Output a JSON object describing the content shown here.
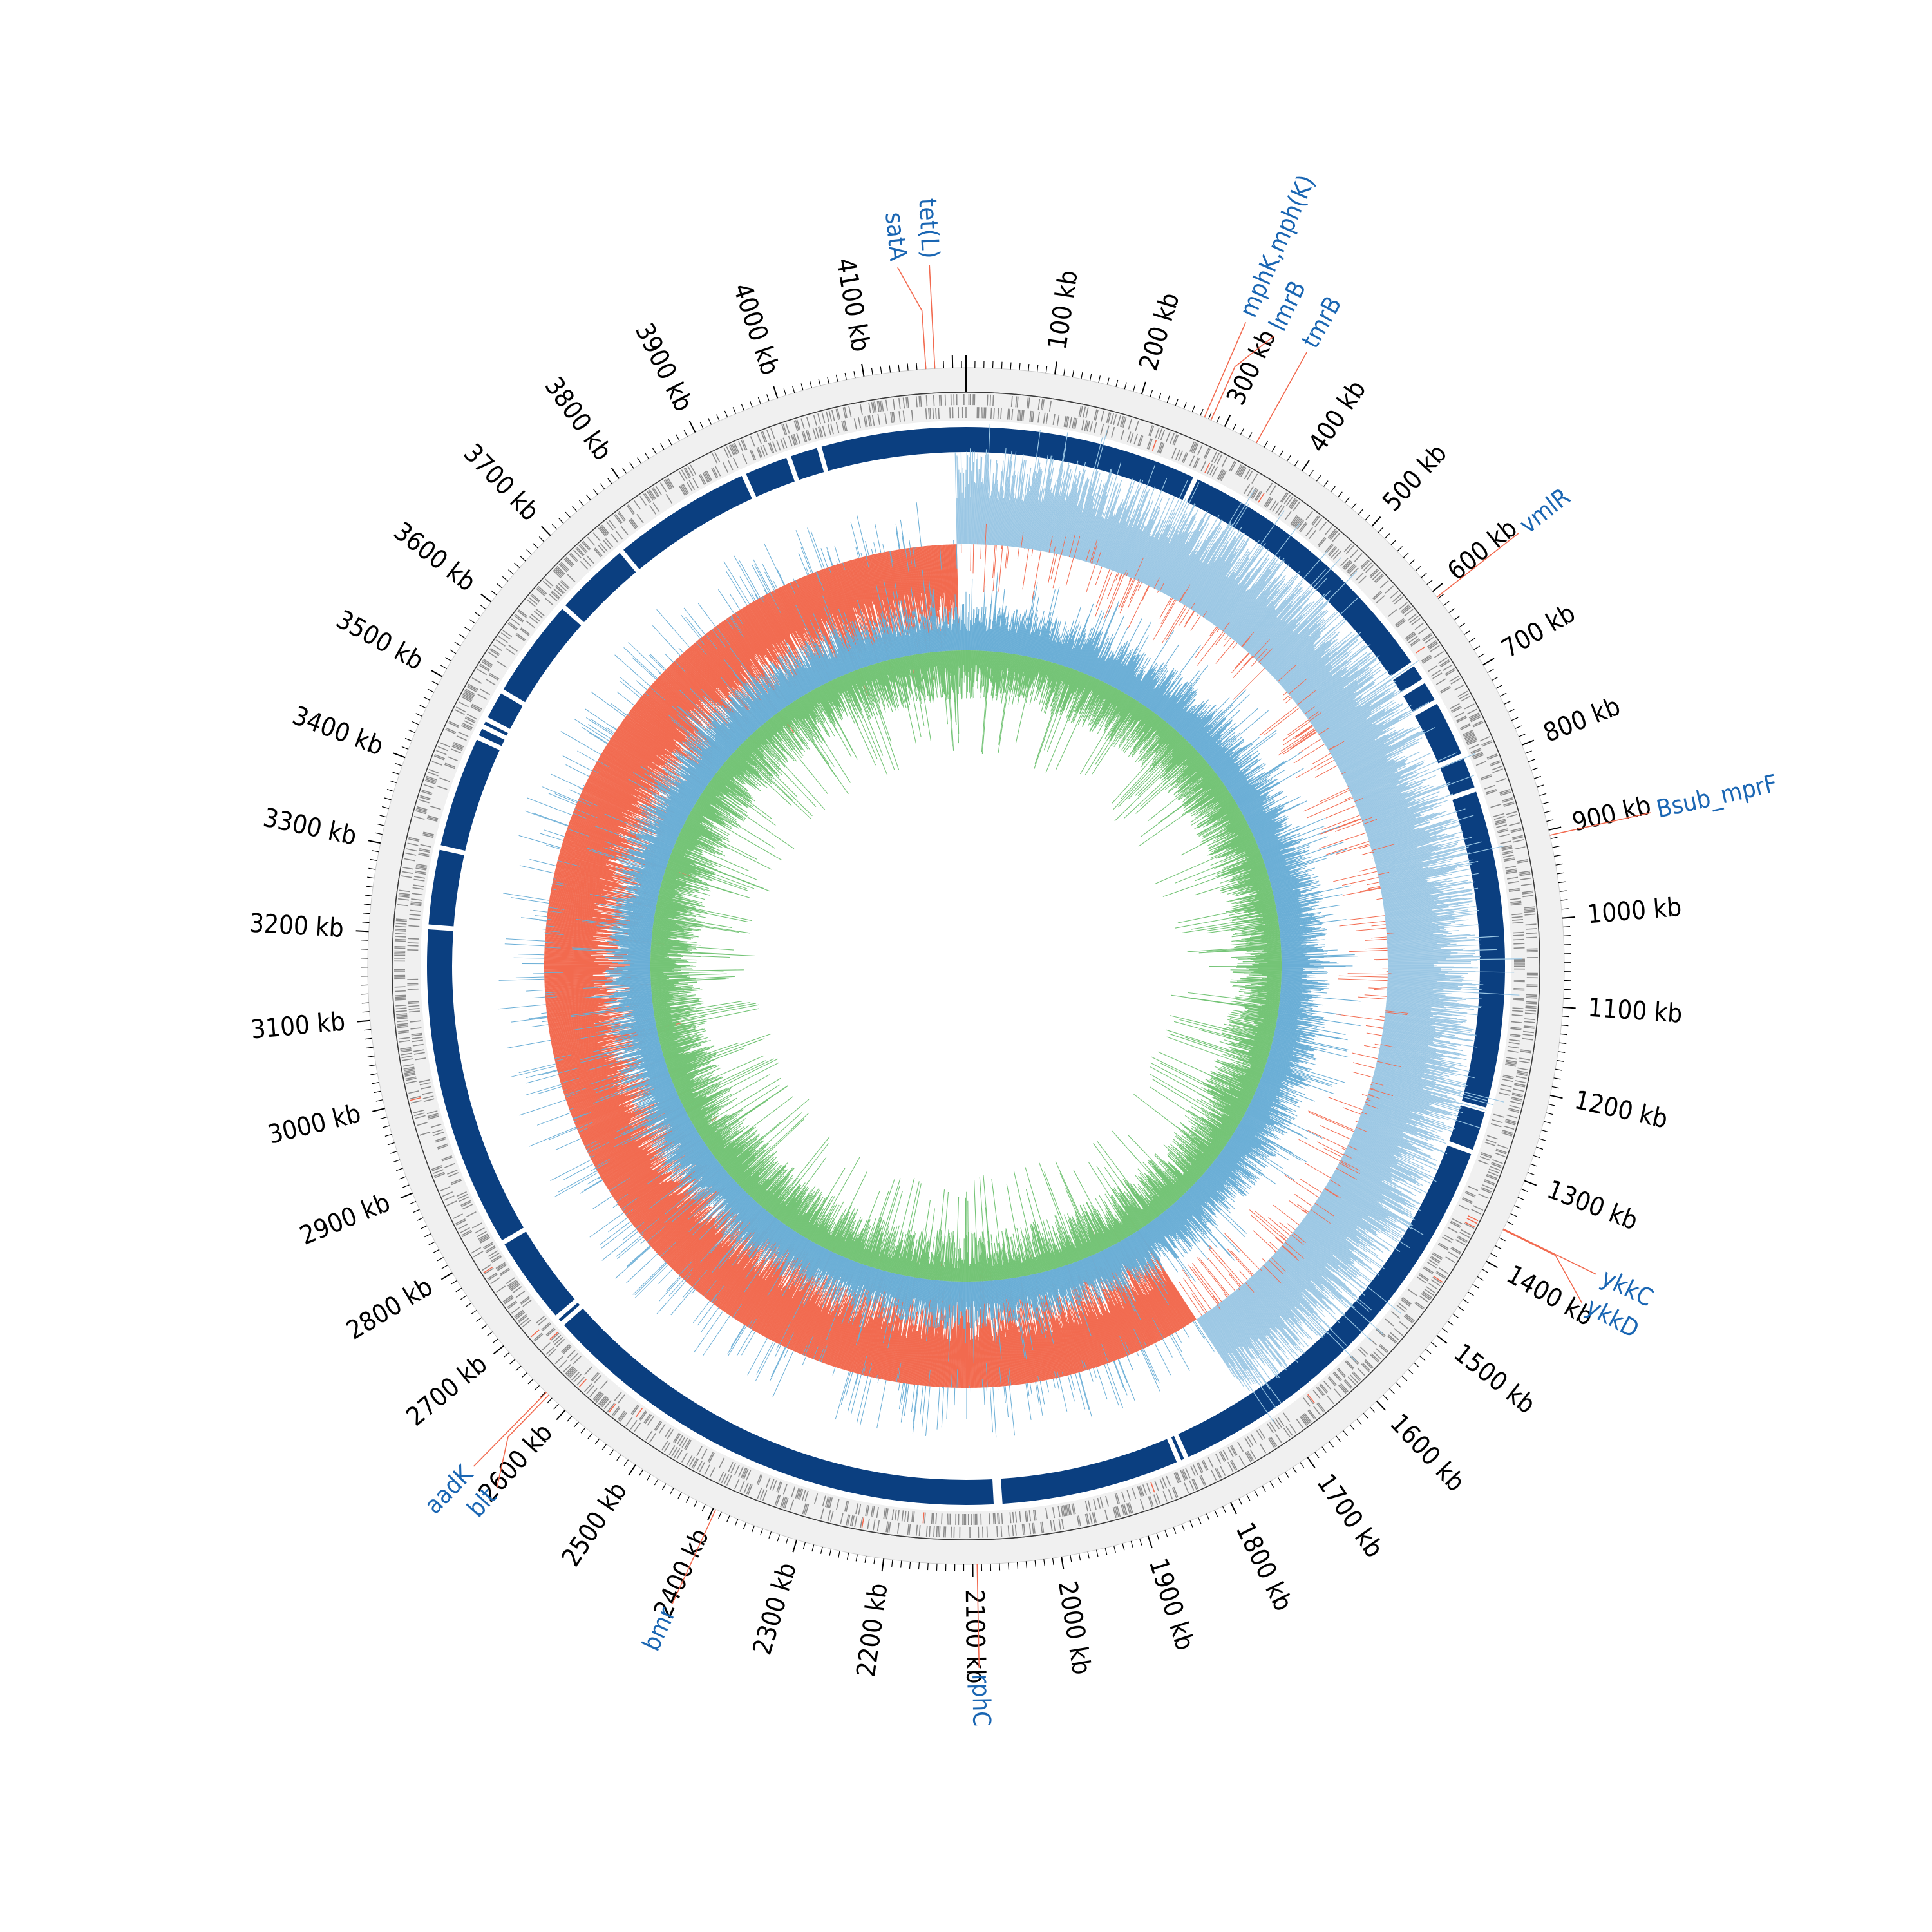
{
  "figure": {
    "genome_length_kb": 4215,
    "origin_angle_deg": 0,
    "direction": "clockwise",
    "colors": {
      "ring_background": "#f0f0f0",
      "ring_outline": "#3a3a3a",
      "feature_gray": "#8c8c8c",
      "feature_red": "#f26a4f",
      "contig_blue": "#0b3f80",
      "gc_skew_positive": "#9bc7e4",
      "gc_skew_negative": "#f26a4f",
      "spike_blue": "#6aaed6",
      "gc_content_green": "#74c476",
      "gene_label_text": "#1a66b3",
      "gene_leader_line": "#f26a4f",
      "tick_text": "#000000"
    }
  },
  "ticks": [
    {
      "kb": 100,
      "label": "100 kb"
    },
    {
      "kb": 200,
      "label": "200 kb"
    },
    {
      "kb": 300,
      "label": "300 kb"
    },
    {
      "kb": 400,
      "label": "400 kb"
    },
    {
      "kb": 500,
      "label": "500 kb"
    },
    {
      "kb": 600,
      "label": "600 kb"
    },
    {
      "kb": 700,
      "label": "700 kb"
    },
    {
      "kb": 800,
      "label": "800 kb"
    },
    {
      "kb": 900,
      "label": "900 kb"
    },
    {
      "kb": 1000,
      "label": "1000 kb"
    },
    {
      "kb": 1100,
      "label": "1100 kb"
    },
    {
      "kb": 1200,
      "label": "1200 kb"
    },
    {
      "kb": 1300,
      "label": "1300 kb"
    },
    {
      "kb": 1400,
      "label": "1400 kb"
    },
    {
      "kb": 1500,
      "label": "1500 kb"
    },
    {
      "kb": 1600,
      "label": "1600 kb"
    },
    {
      "kb": 1700,
      "label": "1700 kb"
    },
    {
      "kb": 1800,
      "label": "1800 kb"
    },
    {
      "kb": 1900,
      "label": "1900 kb"
    },
    {
      "kb": 2000,
      "label": "2000 kb"
    },
    {
      "kb": 2100,
      "label": "2100 kb"
    },
    {
      "kb": 2200,
      "label": "2200 kb"
    },
    {
      "kb": 2300,
      "label": "2300 kb"
    },
    {
      "kb": 2400,
      "label": "2400 kb"
    },
    {
      "kb": 2500,
      "label": "2500 kb"
    },
    {
      "kb": 2600,
      "label": "2600 kb"
    },
    {
      "kb": 2700,
      "label": "2700 kb"
    },
    {
      "kb": 2800,
      "label": "2800 kb"
    },
    {
      "kb": 2900,
      "label": "2900 kb"
    },
    {
      "kb": 3000,
      "label": "3000 kb"
    },
    {
      "kb": 3100,
      "label": "3100 kb"
    },
    {
      "kb": 3200,
      "label": "3200 kb"
    },
    {
      "kb": 3300,
      "label": "3300 kb"
    },
    {
      "kb": 3400,
      "label": "3400 kb"
    },
    {
      "kb": 3500,
      "label": "3500 kb"
    },
    {
      "kb": 3600,
      "label": "3600 kb"
    },
    {
      "kb": 3700,
      "label": "3700 kb"
    },
    {
      "kb": 3800,
      "label": "3800 kb"
    },
    {
      "kb": 3900,
      "label": "3900 kb"
    },
    {
      "kb": 4000,
      "label": "4000 kb"
    },
    {
      "kb": 4100,
      "label": "4100 kb"
    }
  ],
  "gene_labels": [
    {
      "name": "tet(L)",
      "kb": 4180
    },
    {
      "name": "satA",
      "kb": 4170
    },
    {
      "name": "mphK,mph(K)",
      "kb": 275
    },
    {
      "name": "lmrB",
      "kb": 283
    },
    {
      "name": "tmrB",
      "kb": 340
    },
    {
      "name": "vmlR",
      "kb": 608
    },
    {
      "name": "Bsub_mprF",
      "kb": 906
    },
    {
      "name": "ykkC",
      "kb": 1359
    },
    {
      "name": "ykkD",
      "kb": 1360
    },
    {
      "name": "rphC",
      "kb": 2095
    },
    {
      "name": "bmr",
      "kb": 2397
    },
    {
      "name": "aadK",
      "kb": 2629
    },
    {
      "name": "blt",
      "kb": 2625
    }
  ],
  "contig_gaps_kb": [
    295,
    655,
    680,
    710,
    785,
    830,
    1235,
    1290,
    1825,
    1835,
    2065,
    2070,
    2675,
    2685,
    2800,
    3210,
    3310,
    3455,
    3470,
    3480,
    3520,
    3650,
    3750,
    3930,
    3990,
    4030
  ]
}
